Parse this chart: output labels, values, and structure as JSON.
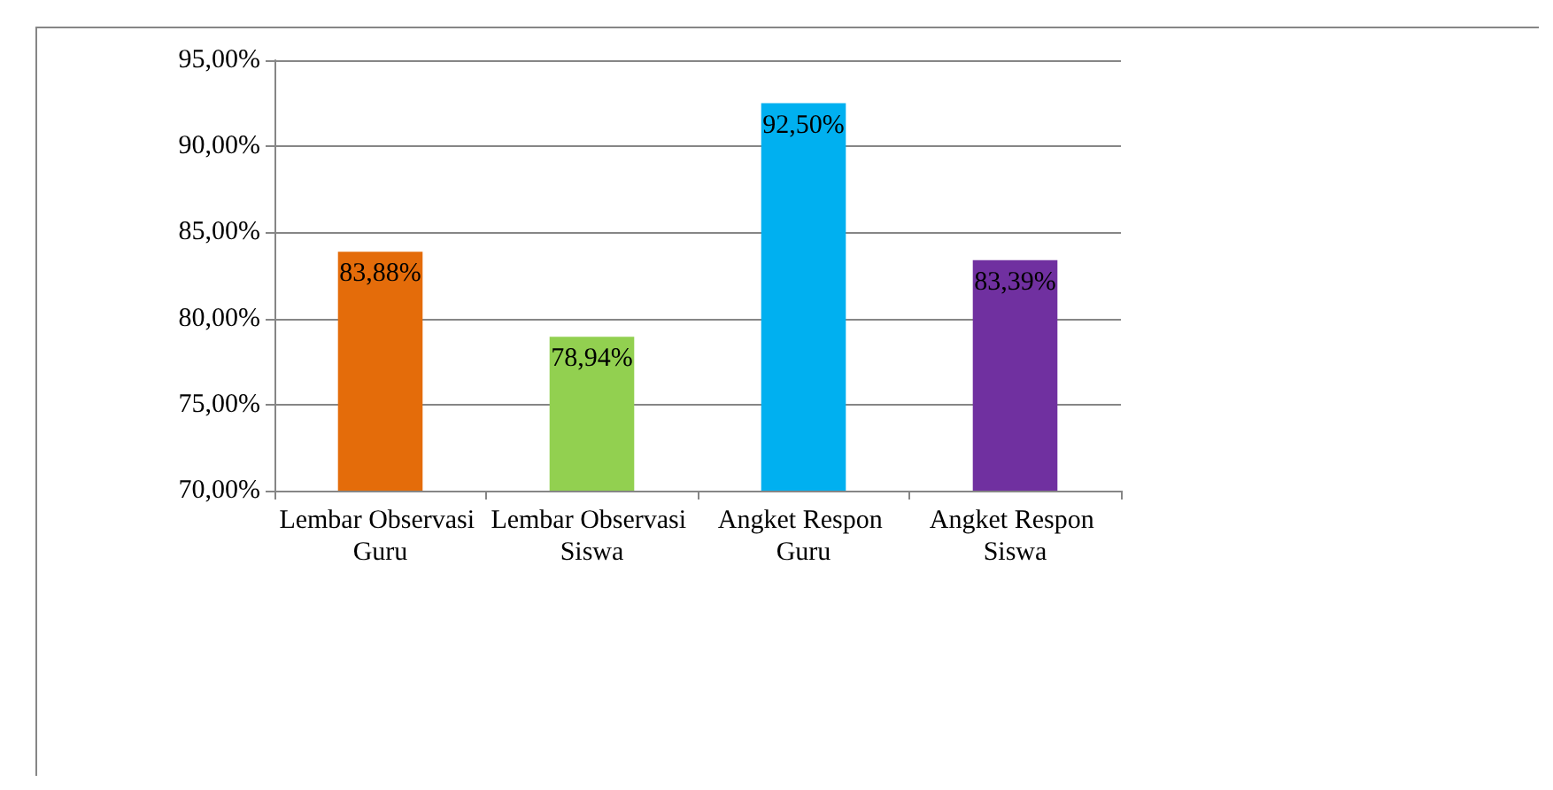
{
  "chart_data": {
    "type": "bar",
    "categories": [
      "Lembar Observasi Guru",
      "Lembar Observasi Siswa",
      "Angket Respon Guru",
      "Angket Respon Siswa"
    ],
    "values": [
      83.88,
      78.94,
      92.5,
      83.39
    ],
    "colors": [
      "#e46c0a",
      "#92d050",
      "#00b0f0",
      "#7030a0"
    ],
    "value_labels": [
      "83,88%",
      "78,94%",
      "92,50%",
      "83,39%"
    ],
    "ylim": [
      70,
      95
    ],
    "yticks": [
      {
        "value": 70,
        "label": "70,00%"
      },
      {
        "value": 75,
        "label": "75,00%"
      },
      {
        "value": 80,
        "label": "80,00%"
      },
      {
        "value": 85,
        "label": "85,00%"
      },
      {
        "value": 90,
        "label": "90,00%"
      },
      {
        "value": 95,
        "label": "95,00%"
      }
    ],
    "grid": "y"
  }
}
